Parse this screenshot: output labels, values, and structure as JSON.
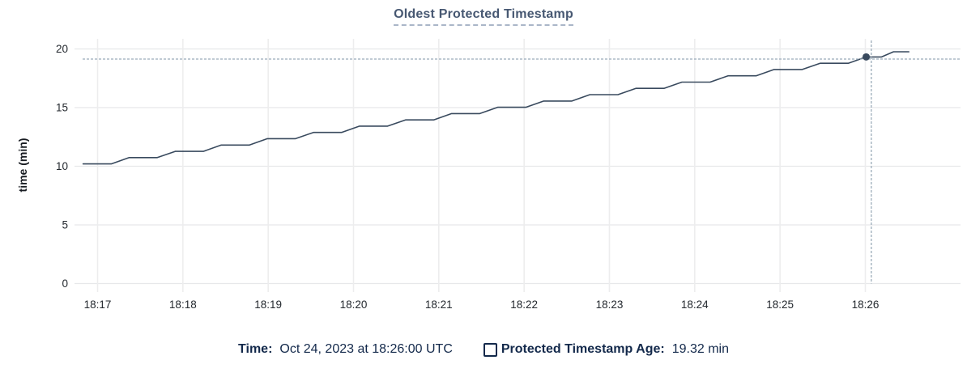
{
  "chart": {
    "title": "Oldest Protected Timestamp"
  },
  "chart_data": {
    "type": "line",
    "title": "Oldest Protected Timestamp",
    "xlabel": "",
    "ylabel": "time (min)",
    "ylim": [
      0,
      20
    ],
    "yticks": [
      0,
      5,
      10,
      15,
      20
    ],
    "x_categories": [
      "18:17",
      "18:18",
      "18:19",
      "18:20",
      "18:21",
      "18:22",
      "18:23",
      "18:24",
      "18:25",
      "18:26"
    ],
    "grid": true,
    "legend_position": "bottom",
    "series": [
      {
        "name": "Protected Timestamp Age",
        "unit": "min",
        "points": [
          [
            -0.17,
            10.2
          ],
          [
            0.16,
            10.2
          ],
          [
            0.37,
            10.74
          ],
          [
            0.7,
            10.74
          ],
          [
            0.91,
            11.27
          ],
          [
            1.24,
            11.27
          ],
          [
            1.45,
            11.81
          ],
          [
            1.78,
            11.81
          ],
          [
            1.99,
            12.35
          ],
          [
            2.32,
            12.35
          ],
          [
            2.53,
            12.88
          ],
          [
            2.86,
            12.88
          ],
          [
            3.07,
            13.42
          ],
          [
            3.4,
            13.42
          ],
          [
            3.61,
            13.95
          ],
          [
            3.94,
            13.95
          ],
          [
            4.15,
            14.49
          ],
          [
            4.48,
            14.49
          ],
          [
            4.69,
            15.03
          ],
          [
            5.02,
            15.03
          ],
          [
            5.23,
            15.56
          ],
          [
            5.56,
            15.56
          ],
          [
            5.77,
            16.1
          ],
          [
            6.1,
            16.1
          ],
          [
            6.31,
            16.64
          ],
          [
            6.64,
            16.64
          ],
          [
            6.85,
            17.17
          ],
          [
            7.18,
            17.17
          ],
          [
            7.39,
            17.71
          ],
          [
            7.72,
            17.71
          ],
          [
            7.93,
            18.25
          ],
          [
            8.26,
            18.25
          ],
          [
            8.47,
            18.78
          ],
          [
            8.8,
            18.78
          ],
          [
            9.01,
            19.32
          ],
          [
            9.19,
            19.32
          ],
          [
            9.33,
            19.76
          ],
          [
            9.51,
            19.76
          ]
        ],
        "points_x_unit": "minutes_after_18:17"
      }
    ],
    "hover_point": {
      "t": 9.01,
      "value": 19.32
    },
    "cursor": {
      "t": 9.07,
      "value": 19.14
    }
  },
  "legend": {
    "time_label": "Time:",
    "time_value": "Oct 24, 2023 at 18:26:00 UTC",
    "series_label": "Protected Timestamp Age:",
    "series_value": "19.32 min"
  },
  "colors": {
    "line": "#394a5e",
    "dot": "#394a5e",
    "title": "#475872",
    "legend_text": "#13294b",
    "grid_horizontal": "#e7e8ea",
    "grid_vertical": "#ededee",
    "cursor_dash": "#9bacba",
    "tick_text": "#24292f"
  }
}
